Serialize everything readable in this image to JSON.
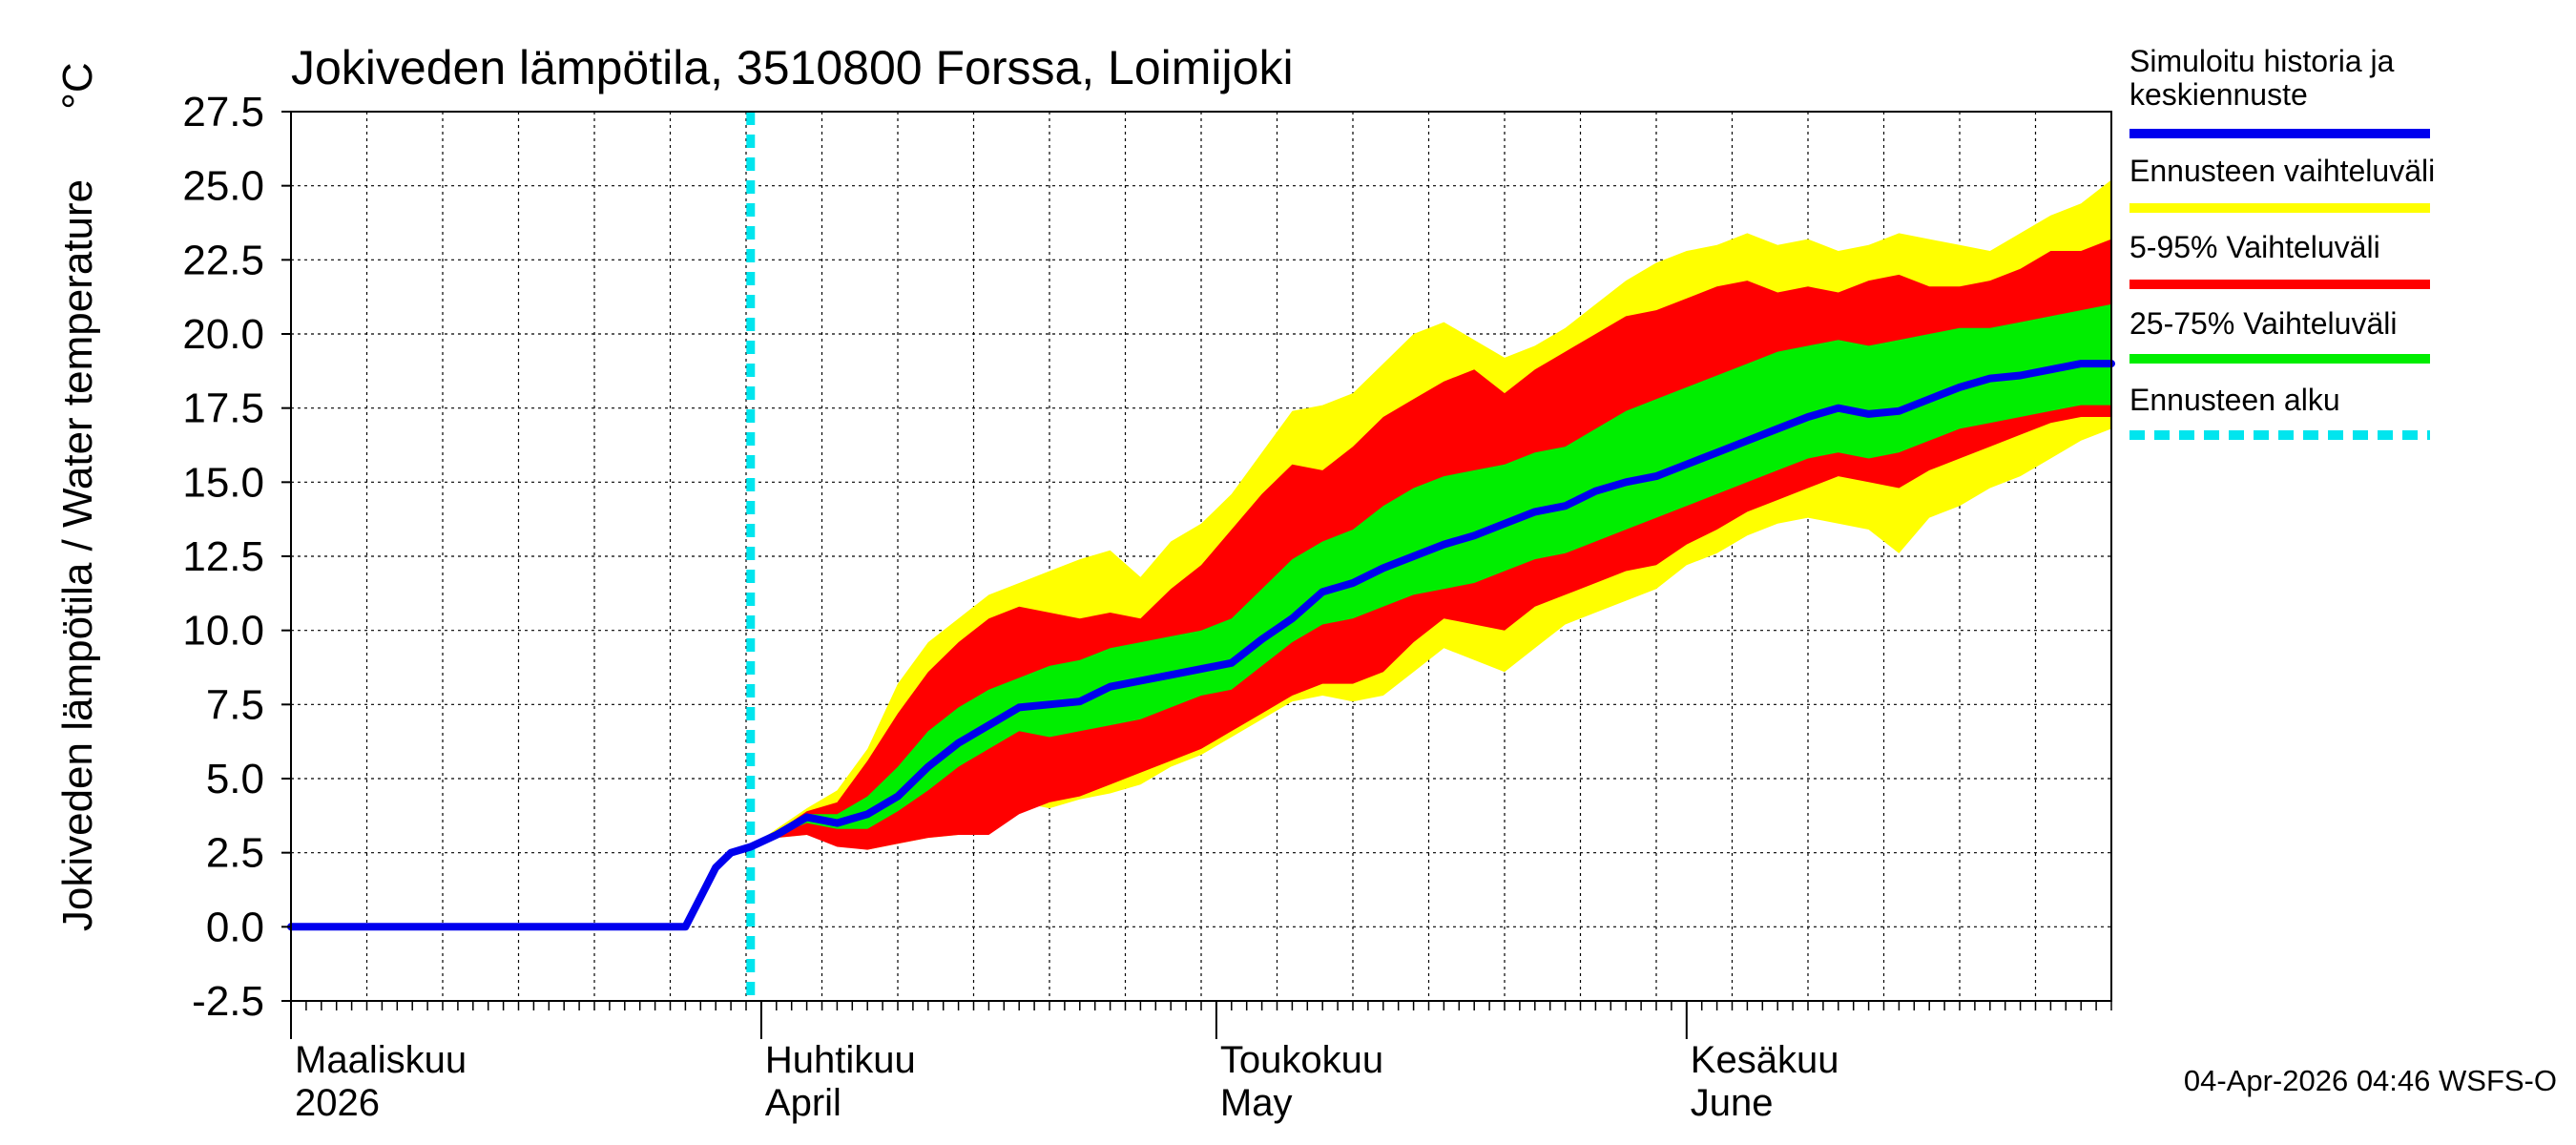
{
  "chart_data": {
    "type": "area",
    "title": "Jokiveden lämpötila, 3510800 Forssa, Loimijoki",
    "ylabel": "Jokiveden lämpötila / Water temperature",
    "yunit": "°C",
    "ylim": [
      -2.5,
      27.5
    ],
    "yticks": [
      "27.5",
      "25.0",
      "22.5",
      "20.0",
      "17.5",
      "15.0",
      "12.5",
      "10.0",
      "7.5",
      "5.0",
      "2.5",
      "0.0",
      "-2.5"
    ],
    "x_unit": "days since 2026-03-01",
    "xlim": [
      0,
      120
    ],
    "months": [
      {
        "fi": "Maaliskuu",
        "en": "2026",
        "day": 0
      },
      {
        "fi": "Huhtikuu",
        "en": "April",
        "day": 31
      },
      {
        "fi": "Toukokuu",
        "en": "May",
        "day": 61
      },
      {
        "fi": "Kesäkuu",
        "en": "June",
        "day": 92
      }
    ],
    "forecast_start_day": 30.3,
    "grid": true,
    "legend_position": "right",
    "legend": [
      {
        "label_lines": [
          "Simuloitu historia ja",
          "keskiennuste"
        ],
        "color": "#0000ee",
        "style": "solid"
      },
      {
        "label_lines": [
          "Ennusteen vaihteluväli"
        ],
        "color": "#ffff00",
        "style": "solid"
      },
      {
        "label_lines": [
          "5-95% Vaihteluväli"
        ],
        "color": "#ff0000",
        "style": "solid"
      },
      {
        "label_lines": [
          "25-75% Vaihteluväli"
        ],
        "color": "#00ee00",
        "style": "solid"
      },
      {
        "label_lines": [
          "Ennusteen alku"
        ],
        "color": "#00e5ee",
        "style": "dashed"
      }
    ],
    "colors": {
      "median": "#0000ee",
      "range": "#ffff00",
      "p5_95": "#ff0000",
      "p25_75": "#00ee00",
      "forecast_start": "#00e5ee"
    },
    "history": {
      "x": [
        0,
        26,
        27,
        28,
        29,
        30.3
      ],
      "y": [
        0.0,
        0.0,
        1.0,
        2.0,
        2.5,
        2.7
      ]
    },
    "x": [
      30.3,
      32,
      34,
      36,
      38,
      40,
      42,
      44,
      46,
      48,
      50,
      52,
      54,
      56,
      58,
      60,
      62,
      64,
      66,
      68,
      70,
      72,
      74,
      76,
      78,
      80,
      82,
      84,
      86,
      88,
      90,
      92,
      94,
      96,
      98,
      100,
      102,
      104,
      106,
      108,
      110,
      112,
      114,
      116,
      118,
      120
    ],
    "median": [
      2.7,
      3.1,
      3.7,
      3.5,
      3.8,
      4.4,
      5.4,
      6.2,
      6.8,
      7.4,
      7.5,
      7.6,
      8.1,
      8.3,
      8.5,
      8.7,
      8.9,
      9.7,
      10.4,
      11.3,
      11.6,
      12.1,
      12.5,
      12.9,
      13.2,
      13.6,
      14.0,
      14.2,
      14.7,
      15.0,
      15.2,
      15.6,
      16.0,
      16.4,
      16.8,
      17.2,
      17.5,
      17.3,
      17.4,
      17.8,
      18.2,
      18.5,
      18.6,
      18.8,
      19.0,
      19.0
    ],
    "range_lo": [
      2.7,
      3.0,
      3.1,
      2.8,
      2.6,
      2.8,
      3.0,
      3.1,
      3.6,
      4.2,
      4.0,
      4.3,
      4.5,
      4.8,
      5.4,
      5.8,
      6.4,
      7.0,
      7.6,
      7.8,
      7.6,
      7.8,
      8.6,
      9.4,
      9.0,
      8.6,
      9.4,
      10.2,
      10.6,
      11.0,
      11.4,
      12.2,
      12.6,
      13.2,
      13.6,
      13.8,
      13.6,
      13.4,
      12.6,
      13.8,
      14.2,
      14.8,
      15.2,
      15.8,
      16.4,
      16.8
    ],
    "range_hi": [
      2.7,
      3.3,
      4.0,
      4.6,
      6.0,
      8.2,
      9.6,
      10.4,
      11.2,
      11.6,
      12.0,
      12.4,
      12.7,
      11.8,
      13.0,
      13.6,
      14.6,
      16.0,
      17.4,
      17.6,
      18.0,
      19.0,
      20.0,
      20.4,
      19.8,
      19.2,
      19.6,
      20.2,
      21.0,
      21.8,
      22.4,
      22.8,
      23.0,
      23.4,
      23.0,
      23.2,
      22.8,
      23.0,
      23.4,
      23.2,
      23.0,
      22.8,
      23.4,
      24.0,
      24.4,
      25.2
    ],
    "p5": [
      2.7,
      3.0,
      3.1,
      2.7,
      2.6,
      2.8,
      3.0,
      3.1,
      3.1,
      3.8,
      4.2,
      4.4,
      4.8,
      5.2,
      5.6,
      6.0,
      6.6,
      7.2,
      7.8,
      8.2,
      8.2,
      8.6,
      9.6,
      10.4,
      10.2,
      10.0,
      10.8,
      11.2,
      11.6,
      12.0,
      12.2,
      12.9,
      13.4,
      14.0,
      14.4,
      14.8,
      15.2,
      15.0,
      14.8,
      15.4,
      15.8,
      16.2,
      16.6,
      17.0,
      17.2,
      17.2
    ],
    "p95": [
      2.7,
      3.2,
      3.9,
      4.2,
      5.6,
      7.2,
      8.6,
      9.6,
      10.4,
      10.8,
      10.6,
      10.4,
      10.6,
      10.4,
      11.4,
      12.2,
      13.4,
      14.6,
      15.6,
      15.4,
      16.2,
      17.2,
      17.8,
      18.4,
      18.8,
      18.0,
      18.8,
      19.4,
      20.0,
      20.6,
      20.8,
      21.2,
      21.6,
      21.8,
      21.4,
      21.6,
      21.4,
      21.8,
      22.0,
      21.6,
      21.6,
      21.8,
      22.2,
      22.8,
      22.8,
      23.2
    ],
    "p25": [
      2.7,
      3.1,
      3.5,
      3.3,
      3.3,
      3.9,
      4.6,
      5.4,
      6.0,
      6.6,
      6.4,
      6.6,
      6.8,
      7.0,
      7.4,
      7.8,
      8.0,
      8.8,
      9.6,
      10.2,
      10.4,
      10.8,
      11.2,
      11.4,
      11.6,
      12.0,
      12.4,
      12.6,
      13.0,
      13.4,
      13.8,
      14.2,
      14.6,
      15.0,
      15.4,
      15.8,
      16.0,
      15.8,
      16.0,
      16.4,
      16.8,
      17.0,
      17.2,
      17.4,
      17.6,
      17.6
    ],
    "p75": [
      2.7,
      3.2,
      3.8,
      3.8,
      4.4,
      5.4,
      6.6,
      7.4,
      8.0,
      8.4,
      8.8,
      9.0,
      9.4,
      9.6,
      9.8,
      10.0,
      10.4,
      11.4,
      12.4,
      13.0,
      13.4,
      14.2,
      14.8,
      15.2,
      15.4,
      15.6,
      16.0,
      16.2,
      16.8,
      17.4,
      17.8,
      18.2,
      18.6,
      19.0,
      19.4,
      19.6,
      19.8,
      19.6,
      19.8,
      20.0,
      20.2,
      20.2,
      20.4,
      20.6,
      20.8,
      21.0
    ]
  },
  "footer": {
    "timestamp": "04-Apr-2026 04:46 WSFS-O"
  }
}
